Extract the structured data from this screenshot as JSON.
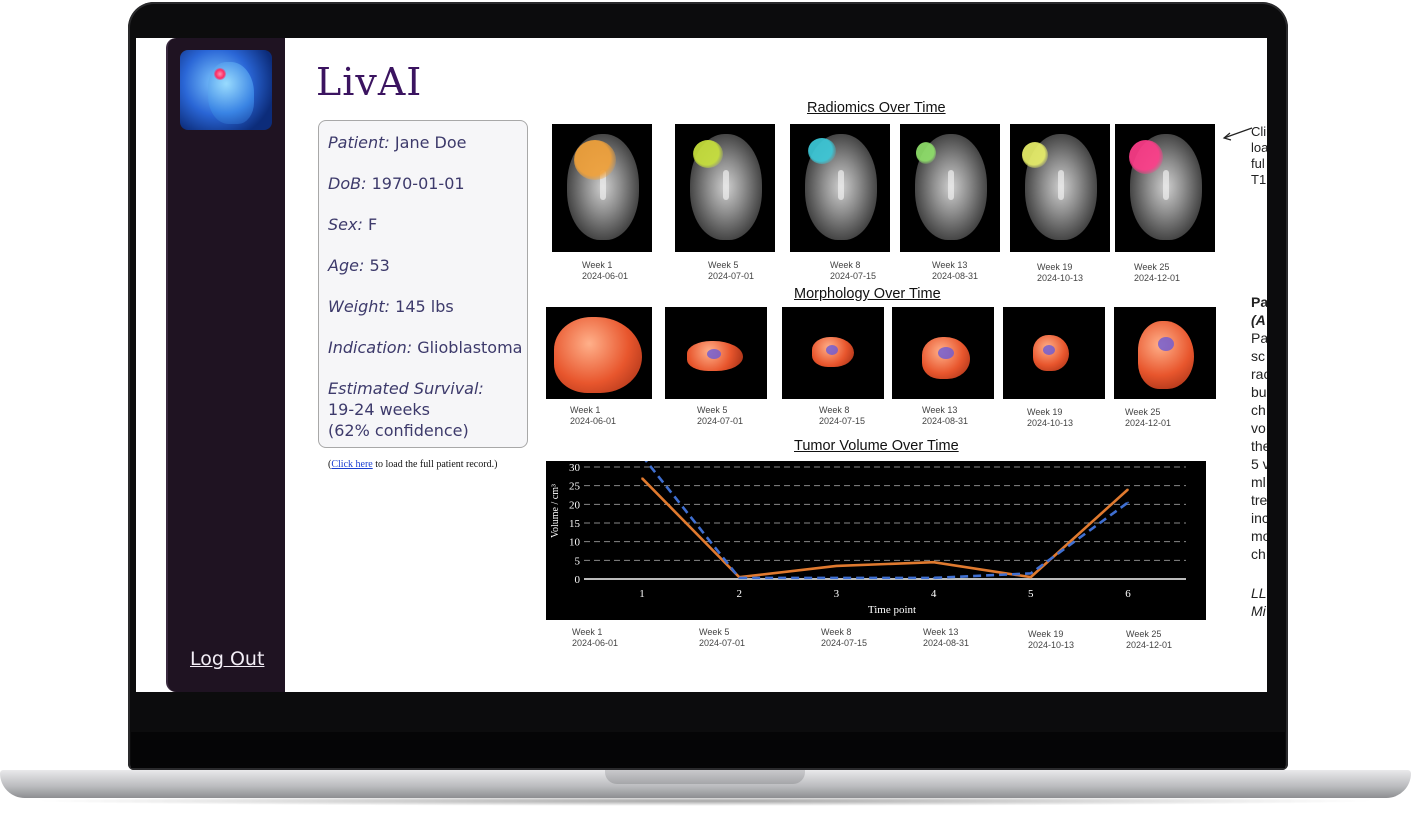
{
  "app": {
    "brand": "LivAI",
    "logout_label": "Log Out"
  },
  "patient": {
    "name_label": "Patient:",
    "name_value": "Jane Doe",
    "dob_label": "DoB:",
    "dob_value": "1970-01-01",
    "sex_label": "Sex:",
    "sex_value": "F",
    "age_label": "Age:",
    "age_value": "53",
    "weight_label": "Weight:",
    "weight_value": "145 lbs",
    "indication_label": "Indication:",
    "indication_value": "Glioblastoma",
    "survival_label": "Estimated Survival:",
    "survival_value": "19-24 weeks",
    "survival_confidence": "(62% confidence)"
  },
  "record_note": {
    "open_paren": "(",
    "link_text": "Click here",
    "rest": " to load the full patient record.)"
  },
  "sections": {
    "radiomics_title": "Radiomics Over Time",
    "morphology_title": "Morphology Over Time",
    "volume_title": "Tumor Volume Over Time"
  },
  "timepoints": [
    {
      "week": "Week 1",
      "date": "2024-06-01"
    },
    {
      "week": "Week 5",
      "date": "2024-07-01"
    },
    {
      "week": "Week 8",
      "date": "2024-07-15"
    },
    {
      "week": "Week 13",
      "date": "2024-08-31"
    },
    {
      "week": "Week 19",
      "date": "2024-10-13"
    },
    {
      "week": "Week 25",
      "date": "2024-12-01"
    }
  ],
  "radiomics_overlay_colors": [
    "#f2a23a",
    "#c9e23c",
    "#3cc9d9",
    "#8fe06a",
    "#e9f06a",
    "#ff3d8a"
  ],
  "right_panel": {
    "note_lines": "Cli\nloa\nful\nT1",
    "heading": "Pa",
    "subheading": "(A",
    "body_lines": "Pa\nsc\nrac\nbu\nch\nvo\nthe\n5 v\nml\ntre\ninc\nmo\nch",
    "footer_lines": "LL\nMi"
  },
  "chart_data": {
    "type": "line",
    "title": "",
    "xlabel": "Time point",
    "ylabel": "Volume / cm³",
    "x": [
      1,
      2,
      3,
      4,
      5,
      6
    ],
    "ylim": [
      0,
      30
    ],
    "yticks": [
      0,
      5,
      10,
      15,
      20,
      25,
      30
    ],
    "grid": true,
    "series": [
      {
        "values": [
          27,
          0.5,
          3.5,
          4.5,
          0.5,
          24
        ],
        "color": "#e07a2f",
        "style": "solid"
      },
      {
        "values": [
          33,
          0.3,
          0.3,
          0.3,
          1.5,
          20.5
        ],
        "color": "#3f6fd1",
        "style": "dashed"
      }
    ]
  }
}
